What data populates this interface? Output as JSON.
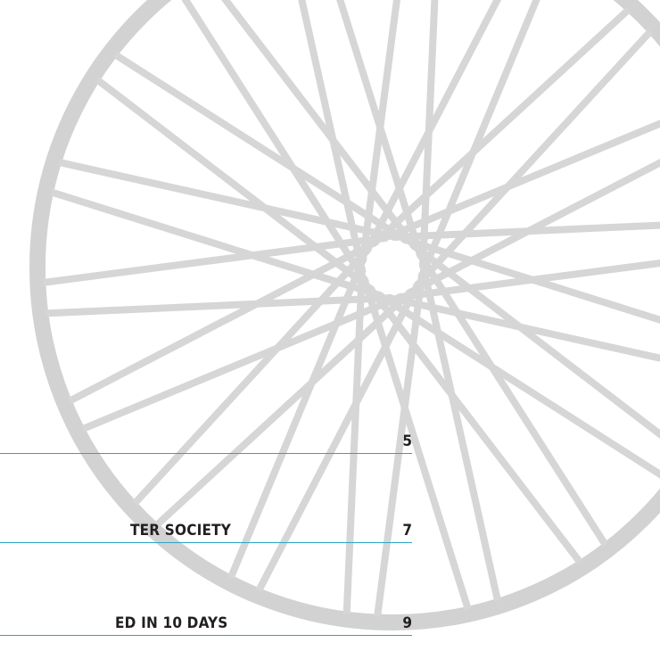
{
  "toc": {
    "entries": [
      {
        "page": "5"
      },
      {
        "title": "TER SOCIETY",
        "page": "7"
      },
      {
        "title": "ED IN 10 DAYS",
        "page": "9"
      }
    ]
  }
}
